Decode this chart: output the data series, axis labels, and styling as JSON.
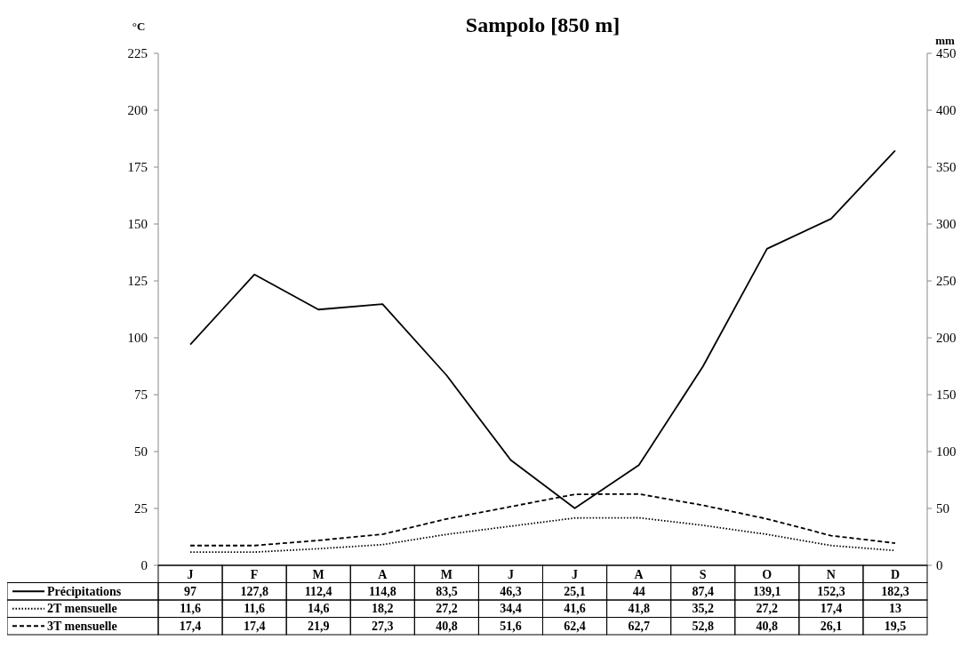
{
  "chart_data": {
    "type": "line",
    "title": "Sampolo [850 m]",
    "ylabel": "°C",
    "y2label": "mm",
    "categories": [
      "J",
      "F",
      "M",
      "A",
      "M",
      "J",
      "J",
      "A",
      "S",
      "O",
      "N",
      "D"
    ],
    "ylim": [
      0,
      225
    ],
    "yticks": [
      0,
      25,
      50,
      75,
      100,
      125,
      150,
      175,
      200,
      225
    ],
    "y2lim": [
      0,
      450
    ],
    "y2ticks": [
      0,
      50,
      100,
      150,
      200,
      250,
      300,
      350,
      400,
      450
    ],
    "grid": false,
    "legend": "bottom",
    "marker": "none",
    "series": [
      {
        "name": "Précipitations",
        "color": "#000000",
        "line_style": "solid",
        "values": [
          97,
          127.8,
          112.4,
          114.8,
          83.5,
          46.3,
          25.1,
          44,
          87.4,
          139.1,
          152.3,
          182.3
        ],
        "value_labels": [
          "97",
          "127,8",
          "112,4",
          "114,8",
          "83,5",
          "46,3",
          "25,1",
          "44",
          "87,4",
          "139,1",
          "152,3",
          "182,3"
        ]
      },
      {
        "name": "2T mensuelle",
        "color": "#000000",
        "line_style": "dotted",
        "axis": "y2",
        "values": [
          11.6,
          11.6,
          14.6,
          18.2,
          27.2,
          34.4,
          41.6,
          41.8,
          35.2,
          27.2,
          17.4,
          13
        ],
        "value_labels": [
          "11,6",
          "11,6",
          "14,6",
          "18,2",
          "27,2",
          "34,4",
          "41,6",
          "41,8",
          "35,2",
          "27,2",
          "17,4",
          "13"
        ]
      },
      {
        "name": "3T mensuelle",
        "color": "#000000",
        "line_style": "dashed",
        "axis": "y2",
        "values": [
          17.4,
          17.4,
          21.9,
          27.3,
          40.8,
          51.6,
          62.4,
          62.7,
          52.8,
          40.8,
          26.1,
          19.5
        ],
        "value_labels": [
          "17,4",
          "17,4",
          "21,9",
          "27,3",
          "40,8",
          "51,6",
          "62,4",
          "62,7",
          "52,8",
          "40,8",
          "26,1",
          "19,5"
        ]
      }
    ]
  }
}
